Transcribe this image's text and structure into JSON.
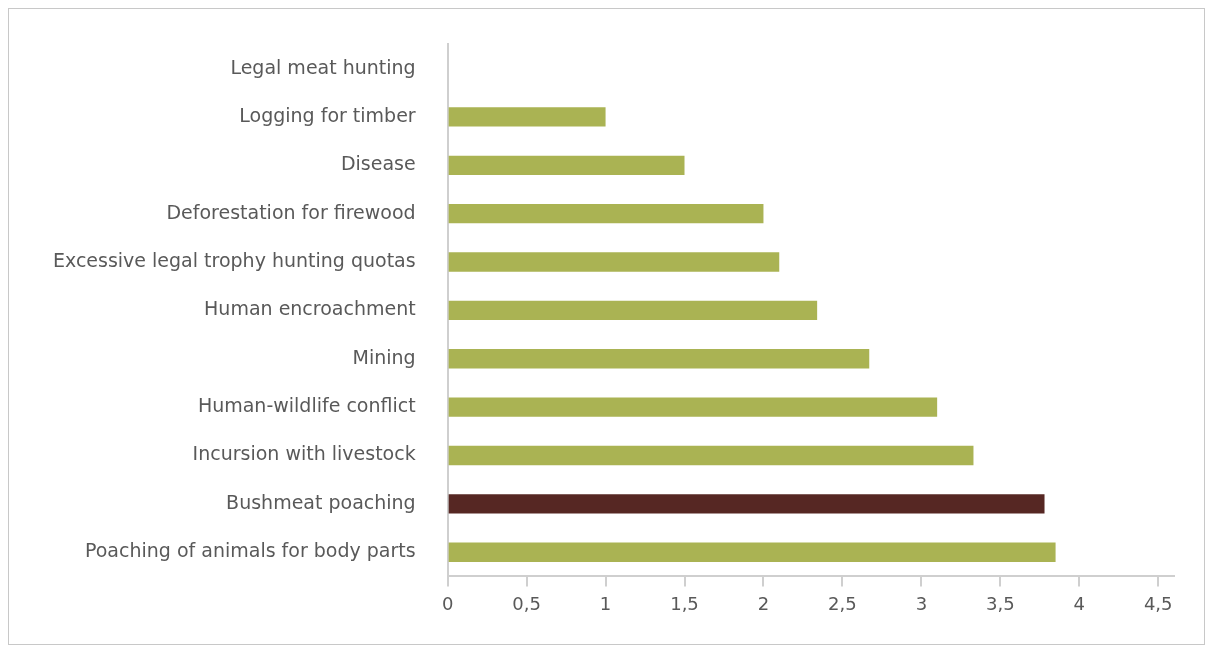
{
  "chart_data": {
    "type": "bar",
    "orientation": "horizontal",
    "categories": [
      "Legal meat hunting",
      "Logging for timber",
      "Disease",
      "Deforestation for firewood",
      "Excessive legal trophy hunting quotas",
      "Human encroachment",
      "Mining",
      "Human-wildlife conflict",
      "Incursion with livestock",
      "Bushmeat poaching",
      "Poaching of animals for body parts"
    ],
    "values": [
      0,
      1.0,
      1.5,
      2.0,
      2.1,
      2.34,
      2.67,
      3.1,
      3.33,
      3.78,
      3.85
    ],
    "colors": [
      "#aab353",
      "#aab353",
      "#aab353",
      "#aab353",
      "#aab353",
      "#aab353",
      "#aab353",
      "#aab353",
      "#aab353",
      "#562723",
      "#aab353"
    ],
    "xlim": [
      0,
      4.6
    ],
    "xticks": [
      0,
      {
        "value": 0.5,
        "label": "0,5"
      },
      1,
      {
        "value": 1.5,
        "label": "1,5"
      },
      2,
      {
        "value": 2.5,
        "label": "2,5"
      },
      3,
      {
        "value": 3.5,
        "label": "3,5"
      },
      4,
      {
        "value": 4.5,
        "label": "4,5"
      }
    ],
    "grid": false,
    "legend": false
  }
}
